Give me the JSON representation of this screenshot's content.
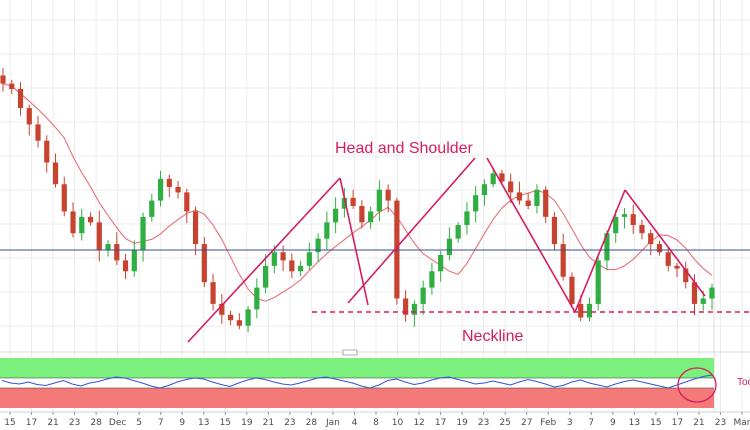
{
  "chart_data": [
    {
      "type": "candlestick",
      "title": "",
      "annotations": {
        "pattern_label": "Head and Shoulder",
        "neckline_label": "Neckline",
        "indicator_note": "Too"
      },
      "x_ticks": [
        "15",
        "17",
        "21",
        "23",
        "28",
        "Dec",
        "5",
        "7",
        "9",
        "13",
        "15",
        "19",
        "21",
        "23",
        "28",
        "Jan",
        "4",
        "8",
        "10",
        "12",
        "17",
        "19",
        "23",
        "25",
        "27",
        "Feb",
        "3",
        "7",
        "9",
        "13",
        "15",
        "17",
        "21",
        "23",
        "Mar"
      ],
      "price_series": {
        "name": "",
        "closes_normalized": [
          0.95,
          0.93,
          0.86,
          0.8,
          0.74,
          0.66,
          0.58,
          0.48,
          0.4,
          0.46,
          0.44,
          0.34,
          0.36,
          0.3,
          0.26,
          0.34,
          0.46,
          0.52,
          0.6,
          0.57,
          0.55,
          0.48,
          0.36,
          0.22,
          0.14,
          0.1,
          0.08,
          0.06,
          0.12,
          0.2,
          0.28,
          0.33,
          0.3,
          0.26,
          0.28,
          0.33,
          0.38,
          0.44,
          0.49,
          0.53,
          0.5,
          0.44,
          0.48,
          0.56,
          0.52,
          0.16,
          0.1,
          0.14,
          0.2,
          0.26,
          0.32,
          0.38,
          0.43,
          0.48,
          0.54,
          0.58,
          0.62,
          0.59,
          0.55,
          0.52,
          0.5,
          0.56,
          0.46,
          0.36,
          0.24,
          0.14,
          0.09,
          0.14,
          0.3,
          0.4,
          0.46,
          0.47,
          0.43,
          0.4,
          0.36,
          0.33,
          0.28,
          0.27,
          0.22,
          0.14,
          0.16,
          0.2
        ]
      },
      "moving_average": {
        "name": "",
        "color": "#e8707a"
      },
      "horizontal_reference_line": {
        "color": "#3a4f8f"
      },
      "neckline_color": "#d81b60",
      "pattern_line_color": "#d81b60",
      "candle_up_color": "#2fae42",
      "candle_down_color": "#c8432f",
      "oscillator": {
        "series_color": "#2f55d4",
        "upper_zone_color": "#7cf07c",
        "lower_zone_color": "#f47a7a",
        "values_normalized": [
          0.55,
          0.5,
          0.48,
          0.52,
          0.47,
          0.45,
          0.5,
          0.55,
          0.48,
          0.44,
          0.5,
          0.53,
          0.58,
          0.62,
          0.6,
          0.55,
          0.5,
          0.44,
          0.4,
          0.45,
          0.52,
          0.57,
          0.6,
          0.58,
          0.52,
          0.47,
          0.43,
          0.5,
          0.56,
          0.6,
          0.57,
          0.52,
          0.48,
          0.46,
          0.5,
          0.55,
          0.6,
          0.62,
          0.58,
          0.54,
          0.5,
          0.44,
          0.4,
          0.46,
          0.55,
          0.58,
          0.52,
          0.47,
          0.5,
          0.56,
          0.6,
          0.62,
          0.57,
          0.53,
          0.48,
          0.5,
          0.54,
          0.5,
          0.46,
          0.52,
          0.57,
          0.53,
          0.48,
          0.42,
          0.45,
          0.52,
          0.56,
          0.5,
          0.46,
          0.42,
          0.48,
          0.53,
          0.56,
          0.52,
          0.48,
          0.44,
          0.4,
          0.46,
          0.52,
          0.58,
          0.63,
          0.66
        ]
      },
      "grid": true
    }
  ]
}
